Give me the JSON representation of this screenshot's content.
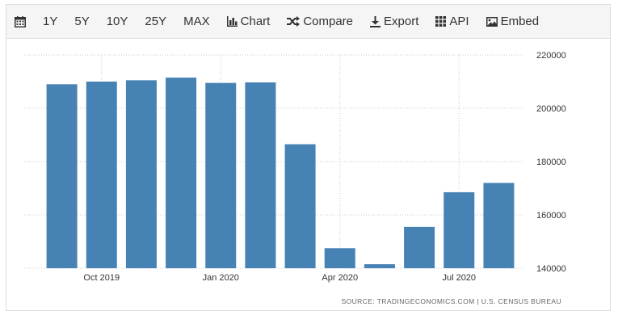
{
  "toolbar": {
    "items": [
      {
        "label": "",
        "icon": "calendar-icon"
      },
      {
        "label": "1Y"
      },
      {
        "label": "5Y"
      },
      {
        "label": "10Y"
      },
      {
        "label": "25Y"
      },
      {
        "label": "MAX"
      },
      {
        "label": "Chart",
        "icon": "bar-chart-icon"
      },
      {
        "label": "Compare",
        "icon": "shuffle-icon"
      },
      {
        "label": "Export",
        "icon": "download-icon"
      },
      {
        "label": "API",
        "icon": "grid-icon"
      },
      {
        "label": "Embed",
        "icon": "image-icon"
      }
    ]
  },
  "source_text": "SOURCE: TRADINGECONOMICS.COM  |  U.S. CENSUS BUREAU",
  "colors": {
    "bar": "#4682b4",
    "grid": "#c8c8c8",
    "text": "#333333"
  },
  "chart_data": {
    "type": "bar",
    "categories": [
      "2019-09",
      "2019-10",
      "2019-11",
      "2019-12",
      "2020-01",
      "2020-02",
      "2020-03",
      "2020-04",
      "2020-05",
      "2020-06",
      "2020-07",
      "2020-08"
    ],
    "values": [
      209000,
      210000,
      210500,
      211500,
      209500,
      209700,
      186500,
      147500,
      141500,
      155500,
      168500,
      172000
    ],
    "x_tick_labels": [
      {
        "label": "Oct 2019",
        "category": "2019-10"
      },
      {
        "label": "Jan 2020",
        "category": "2020-01"
      },
      {
        "label": "Apr 2020",
        "category": "2020-04"
      },
      {
        "label": "Jul 2020",
        "category": "2020-07"
      }
    ],
    "y_ticks": [
      140000,
      160000,
      180000,
      200000,
      220000
    ],
    "ylim": [
      140000,
      220000
    ],
    "y_axis_position": "right",
    "grid": true,
    "title": "",
    "xlabel": "",
    "ylabel": ""
  }
}
